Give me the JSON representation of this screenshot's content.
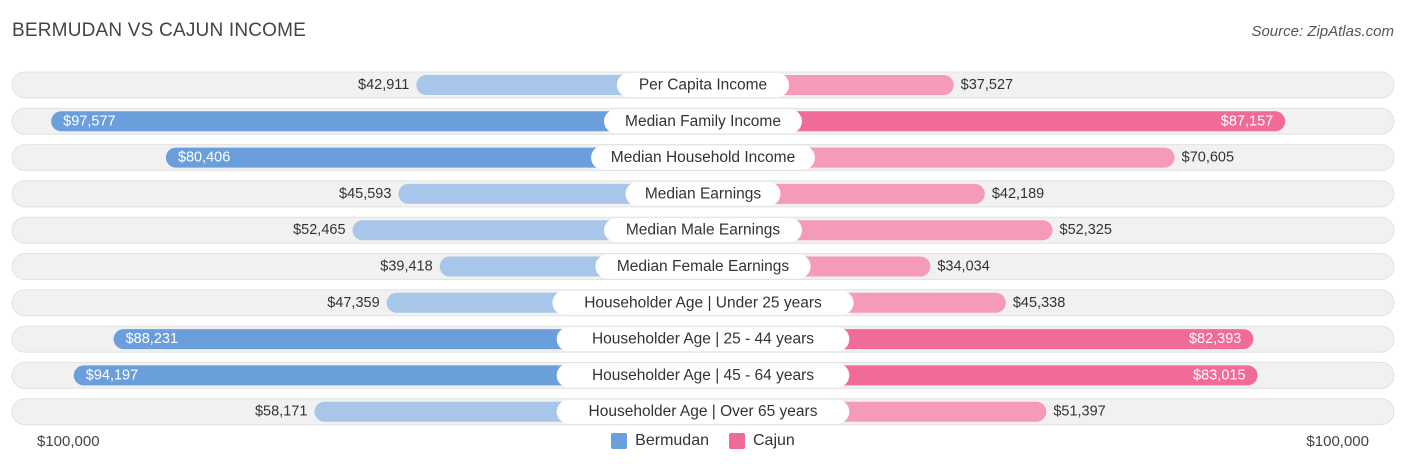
{
  "header": {
    "title": "BERMUDAN VS CAJUN INCOME",
    "source": "Source: ZipAtlas.com"
  },
  "colors": {
    "bermudan_strong": "#6a9fdc",
    "bermudan_light": "#a7c6ea",
    "cajun_strong": "#f06b95",
    "cajun_light": "#f59bb9",
    "row_bg": "#f1f1f1"
  },
  "chart_data": {
    "type": "bar",
    "orientation": "diverging-horizontal",
    "categories": [
      "Per Capita Income",
      "Median Family Income",
      "Median Household Income",
      "Median Earnings",
      "Median Male Earnings",
      "Median Female Earnings",
      "Householder Age | Under 25 years",
      "Householder Age | 25 - 44 years",
      "Householder Age | 45 - 64 years",
      "Householder Age | Over 65 years"
    ],
    "series": [
      {
        "name": "Bermudan",
        "values": [
          42911,
          97577,
          80406,
          45593,
          52465,
          39418,
          47359,
          88231,
          94197,
          58171
        ],
        "labels": [
          "$42,911",
          "$97,577",
          "$80,406",
          "$45,593",
          "$52,465",
          "$39,418",
          "$47,359",
          "$88,231",
          "$94,197",
          "$58,171"
        ]
      },
      {
        "name": "Cajun",
        "values": [
          37527,
          87157,
          70605,
          42189,
          52325,
          34034,
          45338,
          82393,
          83015,
          51397
        ],
        "labels": [
          "$37,527",
          "$87,157",
          "$70,605",
          "$42,189",
          "$52,325",
          "$34,034",
          "$45,338",
          "$82,393",
          "$83,015",
          "$51,397"
        ]
      }
    ],
    "xlim": [
      0,
      100000
    ],
    "axis_labels": {
      "left": "$100,000",
      "right": "$100,000"
    },
    "legend_position": "bottom-center"
  }
}
